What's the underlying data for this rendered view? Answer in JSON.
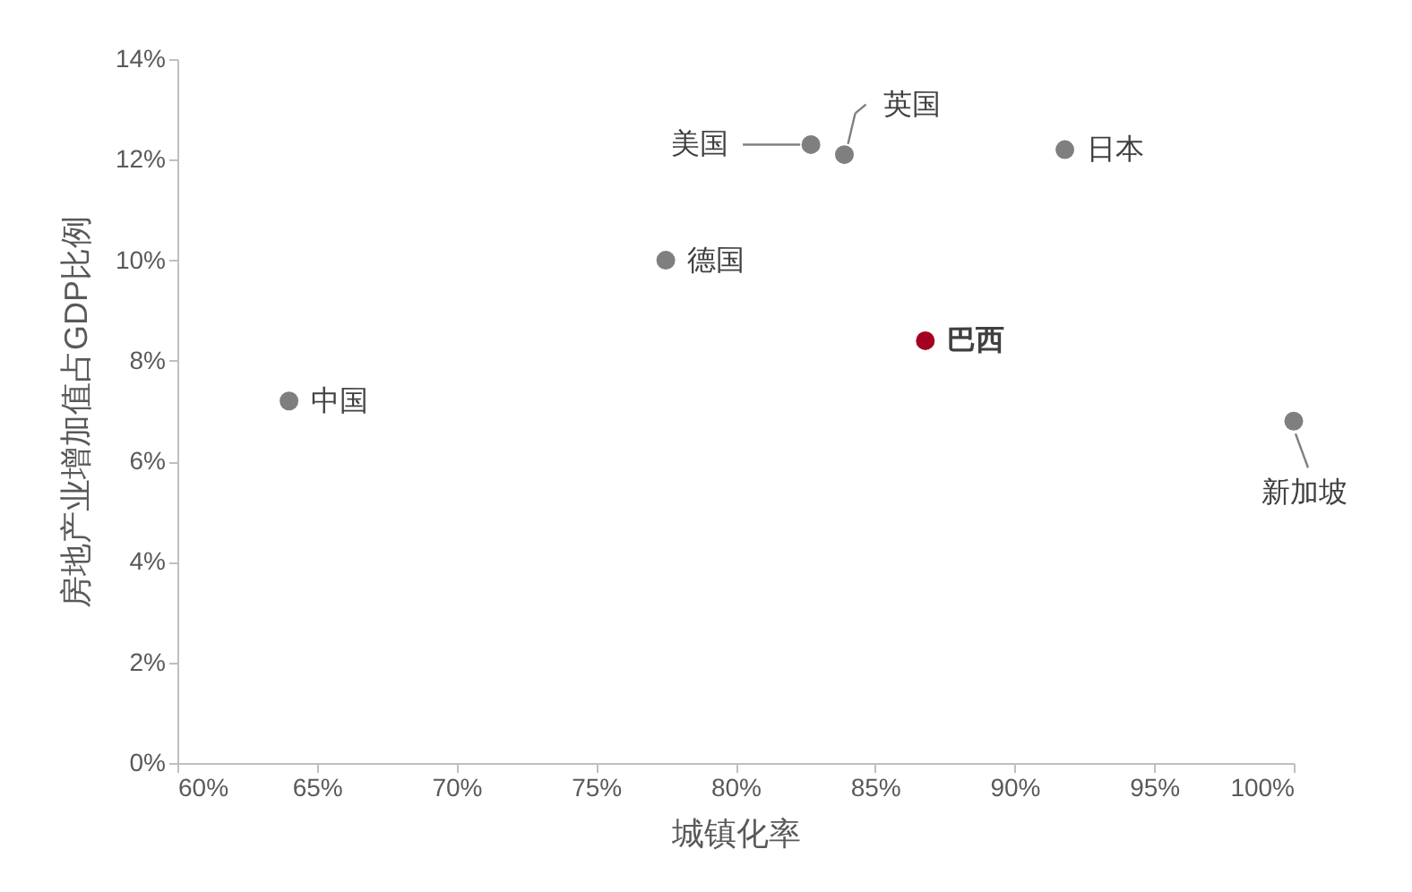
{
  "chart_data": {
    "type": "scatter",
    "xlabel": "城镇化率",
    "ylabel": "房地产业增加值占GDP比例",
    "marker": "circle",
    "xlim": [
      60,
      100
    ],
    "ylim": [
      0,
      14
    ],
    "xticks": [
      {
        "value": 60,
        "label": "60%"
      },
      {
        "value": 65,
        "label": "65%"
      },
      {
        "value": 70,
        "label": "70%"
      },
      {
        "value": 75,
        "label": "75%"
      },
      {
        "value": 80,
        "label": "80%"
      },
      {
        "value": 85,
        "label": "85%"
      },
      {
        "value": 90,
        "label": "90%"
      },
      {
        "value": 95,
        "label": "95%"
      },
      {
        "value": 100,
        "label": "100%"
      }
    ],
    "yticks": [
      {
        "value": 0,
        "label": "0%"
      },
      {
        "value": 2,
        "label": "2%"
      },
      {
        "value": 4,
        "label": "4%"
      },
      {
        "value": 6,
        "label": "6%"
      },
      {
        "value": 8,
        "label": "8%"
      },
      {
        "value": 10,
        "label": "10%"
      },
      {
        "value": 12,
        "label": "12%"
      },
      {
        "value": 14,
        "label": "14%"
      }
    ],
    "series": [
      {
        "name": "中国",
        "color": "#7f7f7f",
        "x": [
          64.0
        ],
        "values": [
          7.2
        ]
      },
      {
        "name": "德国",
        "color": "#7f7f7f",
        "x": [
          77.5
        ],
        "values": [
          10.0
        ]
      },
      {
        "name": "美国",
        "color": "#7f7f7f",
        "x": [
          82.7
        ],
        "values": [
          12.3
        ]
      },
      {
        "name": "英国",
        "color": "#7f7f7f",
        "x": [
          83.9
        ],
        "values": [
          12.1
        ]
      },
      {
        "name": "日本",
        "color": "#7f7f7f",
        "x": [
          91.8
        ],
        "values": [
          12.2
        ]
      },
      {
        "name": "巴西",
        "color": "#a50021",
        "x": [
          86.8
        ],
        "values": [
          8.4
        ]
      },
      {
        "name": "新加坡",
        "color": "#7f7f7f",
        "x": [
          100.0
        ],
        "values": [
          6.8
        ]
      }
    ]
  }
}
